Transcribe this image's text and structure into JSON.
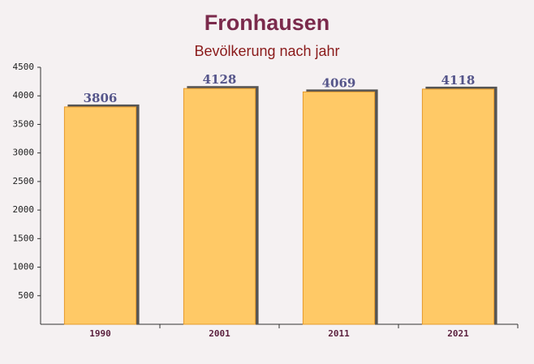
{
  "chart_data": {
    "type": "bar",
    "title": "Fronhausen",
    "subtitle": "Bevölkerung nach jahr",
    "categories": [
      "1990",
      "2001",
      "2011",
      "2021"
    ],
    "values": [
      3806,
      4128,
      4069,
      4118
    ],
    "color": "#ffc966",
    "ylim": [
      0,
      4500
    ],
    "yticks": [
      500,
      1000,
      1500,
      2000,
      2500,
      3000,
      3500,
      4000,
      4500
    ],
    "grid": false
  }
}
